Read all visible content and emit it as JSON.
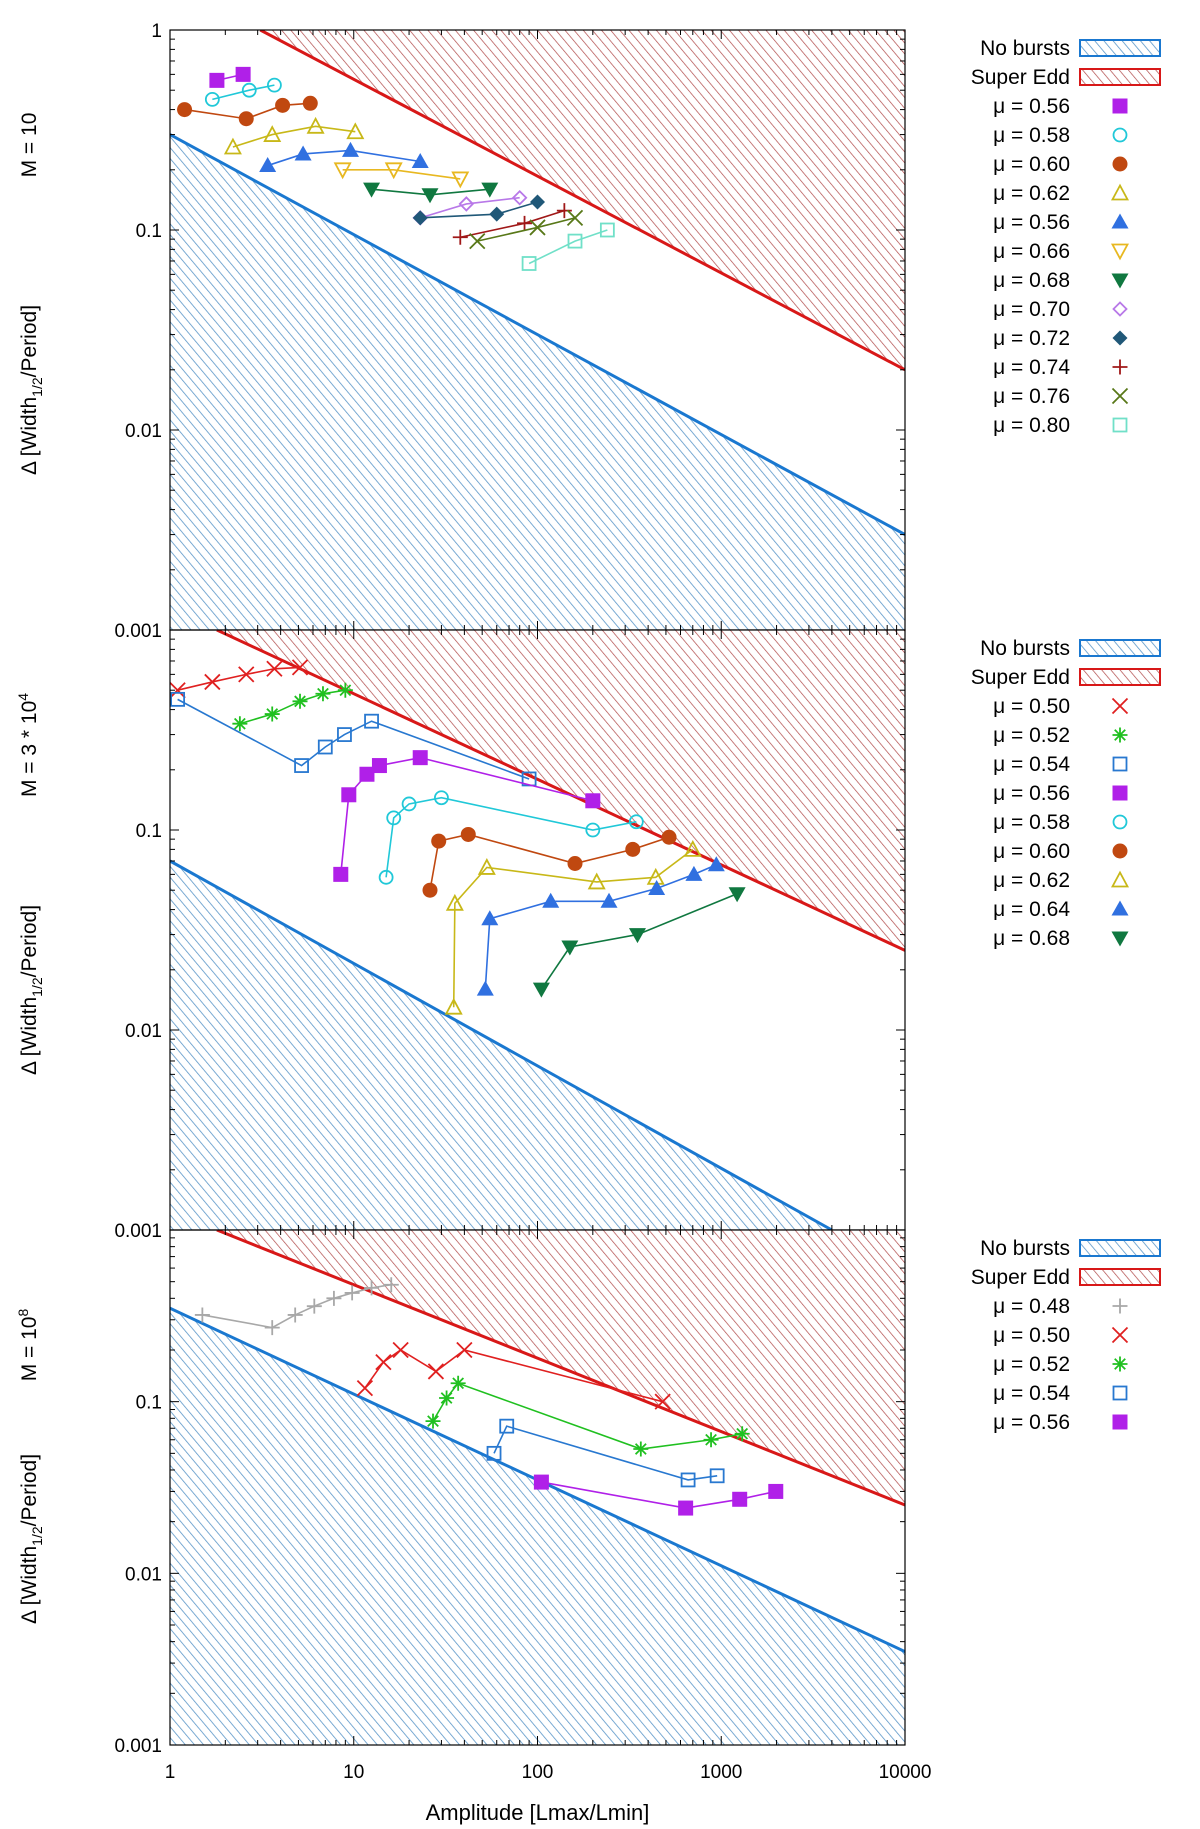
{
  "colors": {
    "no_bursts": "#1a78d0",
    "super_edd": "#d81818",
    "hatch_blue": "#4f93c6",
    "hatch_red": "#b04040"
  },
  "chart_data": [
    {
      "type": "line",
      "id": "M10",
      "title": "",
      "ylabel_top": "M = 10",
      "ylabel": "Δ [Width1/2/Period]",
      "xlabel": "",
      "xscale": "log",
      "yscale": "log",
      "xlim": [
        1,
        10000
      ],
      "ylim": [
        0.001,
        1
      ],
      "yticks": [
        {
          "v": 1,
          "label": "1"
        },
        {
          "v": 0.1,
          "label": "0.1"
        },
        {
          "v": 0.01,
          "label": "0.01"
        },
        {
          "v": 0.001,
          "label": "0.001"
        }
      ],
      "regions": {
        "no_bursts": {
          "label": "No bursts",
          "upper_line": [
            [
              1,
              0.3
            ],
            [
              10000,
              0.003
            ]
          ]
        },
        "super_edd": {
          "label": "Super Edd",
          "lower_line": [
            [
              3.1,
              1
            ],
            [
              10000,
              0.02
            ]
          ]
        }
      },
      "legend_position": "right",
      "series": [
        {
          "name": "μ = 0.56",
          "color": "#b020e8",
          "marker": "square-filled",
          "x": [
            1.8,
            2.5
          ],
          "y": [
            0.56,
            0.6
          ]
        },
        {
          "name": "μ = 0.58",
          "color": "#20c8d8",
          "marker": "circle-open",
          "x": [
            1.7,
            2.7,
            3.7
          ],
          "y": [
            0.45,
            0.5,
            0.53
          ]
        },
        {
          "name": "μ = 0.60",
          "color": "#c04810",
          "marker": "circle-filled",
          "x": [
            1.2,
            2.6,
            4.1,
            5.8
          ],
          "y": [
            0.4,
            0.36,
            0.42,
            0.43
          ]
        },
        {
          "name": "μ = 0.62",
          "color": "#c8b818",
          "marker": "triangle-up-open",
          "x": [
            2.2,
            3.6,
            6.2,
            10.2
          ],
          "y": [
            0.26,
            0.3,
            0.33,
            0.31
          ]
        },
        {
          "name": "μ = 0.56",
          "color": "#3070e0",
          "marker": "triangle-up-filled",
          "x": [
            3.4,
            5.3,
            9.6,
            23.0
          ],
          "y": [
            0.21,
            0.24,
            0.25,
            0.22
          ]
        },
        {
          "name": "μ = 0.66",
          "color": "#e8b820",
          "marker": "triangle-down-open",
          "x": [
            8.7,
            16.5,
            38.0
          ],
          "y": [
            0.2,
            0.2,
            0.18
          ]
        },
        {
          "name": "μ = 0.68",
          "color": "#107840",
          "marker": "triangle-down-filled",
          "x": [
            12.5,
            26.0,
            55.0
          ],
          "y": [
            0.16,
            0.15,
            0.16
          ]
        },
        {
          "name": "μ = 0.70",
          "color": "#b878e8",
          "marker": "diamond-open",
          "x": [
            23.0,
            41.0,
            80.0
          ],
          "y": [
            0.115,
            0.135,
            0.145
          ]
        },
        {
          "name": "μ = 0.72",
          "color": "#205878",
          "marker": "diamond-filled",
          "x": [
            23.0,
            60.0,
            100.0
          ],
          "y": [
            0.115,
            0.12,
            0.138
          ]
        },
        {
          "name": "μ = 0.74",
          "color": "#a01818",
          "marker": "plus",
          "x": [
            38.0,
            85.0,
            140.0
          ],
          "y": [
            0.092,
            0.108,
            0.125
          ]
        },
        {
          "name": "μ = 0.76",
          "color": "#587818",
          "marker": "x",
          "x": [
            47.0,
            100.0,
            160.0
          ],
          "y": [
            0.088,
            0.103,
            0.115
          ]
        },
        {
          "name": "μ = 0.80",
          "color": "#70e0c8",
          "marker": "square-open",
          "x": [
            90.0,
            160.0,
            240.0
          ],
          "y": [
            0.068,
            0.088,
            0.1
          ]
        }
      ]
    },
    {
      "type": "line",
      "id": "M3e4",
      "title": "",
      "ylabel_top": "M = 3 * 10",
      "ylabel_top_exp": "4",
      "ylabel": "Δ [Width1/2/Period]",
      "xlabel": "",
      "xscale": "log",
      "yscale": "log",
      "xlim": [
        1,
        10000
      ],
      "ylim": [
        0.001,
        1
      ],
      "yticks": [
        {
          "v": 0.1,
          "label": "0.1"
        },
        {
          "v": 0.01,
          "label": "0.01"
        },
        {
          "v": 0.001,
          "label": "0.001"
        }
      ],
      "regions": {
        "no_bursts": {
          "label": "No bursts",
          "upper_line": [
            [
              1,
              0.07
            ],
            [
              4000,
              0.001
            ]
          ]
        },
        "super_edd": {
          "label": "Super Edd",
          "lower_line": [
            [
              1.8,
              1
            ],
            [
              10000,
              0.025
            ]
          ]
        }
      },
      "legend_position": "right",
      "series": [
        {
          "name": "μ = 0.50",
          "color": "#e02020",
          "marker": "x",
          "x": [
            1.1,
            1.7,
            2.6,
            3.7,
            5.1
          ],
          "y": [
            0.5,
            0.55,
            0.6,
            0.64,
            0.65
          ]
        },
        {
          "name": "μ = 0.52",
          "color": "#20c020",
          "marker": "star",
          "x": [
            2.4,
            3.6,
            5.1,
            6.8,
            9.0
          ],
          "y": [
            0.34,
            0.38,
            0.44,
            0.48,
            0.5
          ]
        },
        {
          "name": "μ = 0.54",
          "color": "#2878d0",
          "marker": "square-open",
          "x": [
            1.1,
            5.2,
            7.0,
            8.9,
            12.5,
            90.0
          ],
          "y": [
            0.45,
            0.21,
            0.26,
            0.3,
            0.35,
            0.18
          ]
        },
        {
          "name": "μ = 0.56",
          "color": "#b020e8",
          "marker": "square-filled",
          "x": [
            8.5,
            9.4,
            11.8,
            13.8,
            23.0,
            200.0
          ],
          "y": [
            0.06,
            0.15,
            0.19,
            0.21,
            0.23,
            0.14
          ]
        },
        {
          "name": "μ = 0.58",
          "color": "#20c8d8",
          "marker": "circle-open",
          "x": [
            15.0,
            16.5,
            20.0,
            30.0,
            200.0,
            345.0
          ],
          "y": [
            0.058,
            0.115,
            0.135,
            0.145,
            0.1,
            0.11
          ]
        },
        {
          "name": "μ = 0.60",
          "color": "#c04810",
          "marker": "circle-filled",
          "x": [
            26.0,
            29.0,
            42.0,
            160.0,
            330.0,
            520.0
          ],
          "y": [
            0.05,
            0.088,
            0.095,
            0.068,
            0.08,
            0.092
          ]
        },
        {
          "name": "μ = 0.62",
          "color": "#c8b818",
          "marker": "triangle-up-open",
          "x": [
            35.0,
            35.5,
            53.0,
            210.0,
            440.0,
            700.0
          ],
          "y": [
            0.013,
            0.043,
            0.065,
            0.055,
            0.058,
            0.08
          ]
        },
        {
          "name": "μ = 0.64",
          "color": "#3070e0",
          "marker": "triangle-up-filled",
          "x": [
            52.0,
            55.0,
            118.0,
            245.0,
            445.0,
            710.0,
            940.0
          ],
          "y": [
            0.016,
            0.036,
            0.044,
            0.044,
            0.051,
            0.06,
            0.067
          ]
        },
        {
          "name": "μ = 0.68",
          "color": "#107840",
          "marker": "triangle-down-filled",
          "x": [
            105.0,
            150.0,
            350.0,
            1220.0
          ],
          "y": [
            0.016,
            0.026,
            0.03,
            0.048
          ]
        }
      ]
    },
    {
      "type": "line",
      "id": "M1e8",
      "title": "",
      "ylabel_top": "M = 10",
      "ylabel_top_exp": "8",
      "ylabel": "Δ [Width1/2/Period]",
      "xlabel": "Amplitude [Lmax/Lmin]",
      "xscale": "log",
      "yscale": "log",
      "xlim": [
        1,
        10000
      ],
      "ylim": [
        0.001,
        1
      ],
      "xticks": [
        {
          "v": 1,
          "label": "1"
        },
        {
          "v": 10,
          "label": "10"
        },
        {
          "v": 100,
          "label": "100"
        },
        {
          "v": 1000,
          "label": "1000"
        },
        {
          "v": 10000,
          "label": "10000"
        }
      ],
      "yticks": [
        {
          "v": 0.1,
          "label": "0.1"
        },
        {
          "v": 0.01,
          "label": "0.01"
        },
        {
          "v": 0.001,
          "label": "0.001"
        }
      ],
      "regions": {
        "no_bursts": {
          "label": "No bursts",
          "upper_line": [
            [
              1,
              0.35
            ],
            [
              10000,
              0.0035
            ]
          ]
        },
        "super_edd": {
          "label": "Super Edd",
          "lower_line": [
            [
              1.8,
              1
            ],
            [
              10000,
              0.025
            ]
          ]
        }
      },
      "legend_position": "right",
      "series": [
        {
          "name": "μ = 0.48",
          "color": "#a8a8a8",
          "marker": "plus",
          "x": [
            1.5,
            3.6,
            4.8,
            6.1,
            7.8,
            9.8,
            12.5,
            16.0
          ],
          "y": [
            0.32,
            0.27,
            0.32,
            0.36,
            0.4,
            0.43,
            0.46,
            0.48
          ]
        },
        {
          "name": "μ = 0.50",
          "color": "#e02020",
          "marker": "x",
          "x": [
            11.5,
            14.5,
            18.0,
            28.0,
            40.0,
            480.0
          ],
          "y": [
            0.12,
            0.17,
            0.2,
            0.15,
            0.2,
            0.1
          ]
        },
        {
          "name": "μ = 0.52",
          "color": "#20c020",
          "marker": "star",
          "x": [
            27.0,
            32.0,
            37.0,
            365.0,
            880.0,
            1300.0
          ],
          "y": [
            0.077,
            0.105,
            0.128,
            0.053,
            0.06,
            0.065
          ]
        },
        {
          "name": "μ = 0.54",
          "color": "#2878d0",
          "marker": "square-open",
          "x": [
            58.0,
            68.0,
            660.0,
            950.0
          ],
          "y": [
            0.05,
            0.072,
            0.035,
            0.037
          ]
        },
        {
          "name": "μ = 0.56",
          "color": "#b020e8",
          "marker": "square-filled",
          "x": [
            105.0,
            640.0,
            1260.0,
            1980.0
          ],
          "y": [
            0.034,
            0.024,
            0.027,
            0.03
          ]
        }
      ]
    }
  ]
}
